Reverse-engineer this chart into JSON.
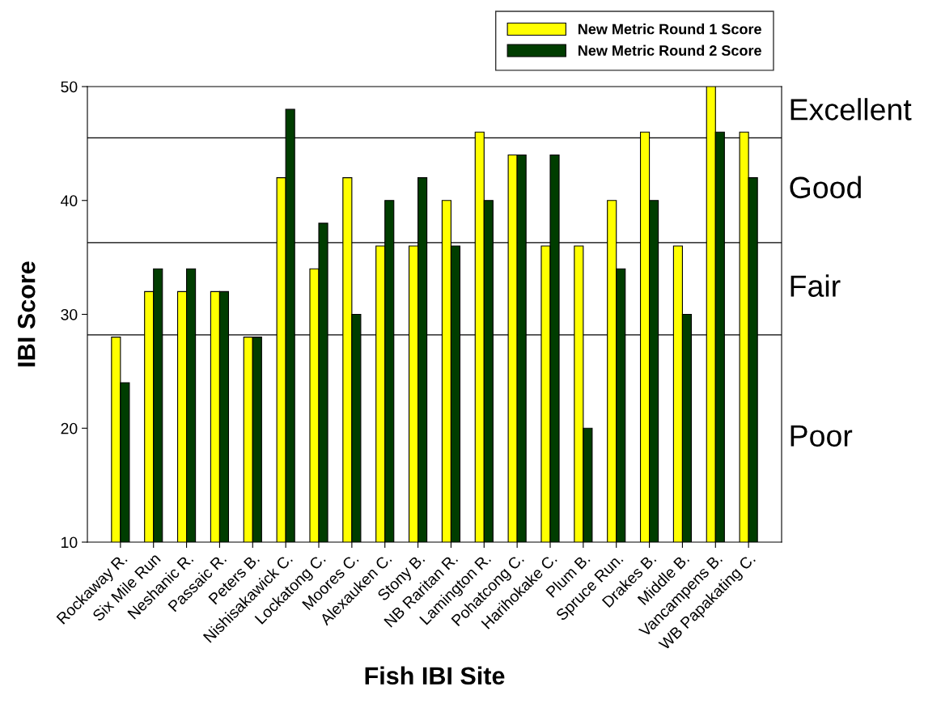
{
  "chart_data": {
    "type": "bar",
    "xlabel": "Fish IBI Site",
    "ylabel": "IBI Score",
    "categories": [
      "Rockaway R.",
      "Six Mile Run",
      "Neshanic R.",
      "Passaic R.",
      "Peters B.",
      "Nishisakawick C.",
      "Lockatong C.",
      "Moores C.",
      "Alexauken C.",
      "Stony B.",
      "NB Raritan R.",
      "Lamington R.",
      "Pohatcong C.",
      "Harihokake C.",
      "Plum B.",
      "Spruce Run.",
      "Drakes B.",
      "Middle B.",
      "Vancampens B.",
      "WB Papakating C."
    ],
    "series": [
      {
        "name": "New Metric Round 1 Score",
        "color": "#ffff00",
        "values": [
          28,
          32,
          32,
          32,
          28,
          42,
          34,
          42,
          36,
          36,
          40,
          46,
          44,
          36,
          36,
          40,
          46,
          36,
          50,
          46
        ]
      },
      {
        "name": "New Metric Round 2 Score",
        "color": "#003d00",
        "values": [
          24,
          34,
          34,
          32,
          28,
          48,
          38,
          30,
          40,
          42,
          36,
          40,
          44,
          44,
          20,
          34,
          40,
          30,
          46,
          42
        ]
      }
    ],
    "ylim": [
      10,
      50
    ],
    "yticks": [
      10,
      20,
      30,
      40,
      50
    ],
    "ref_lines": [
      {
        "axis": "y",
        "value": 28.2
      },
      {
        "axis": "y",
        "value": 36.3
      },
      {
        "axis": "y",
        "value": 45.5
      }
    ],
    "annotations": [
      "Excellent",
      "Good",
      "Fair",
      "Poor"
    ],
    "grid": false,
    "legend": "top right"
  }
}
